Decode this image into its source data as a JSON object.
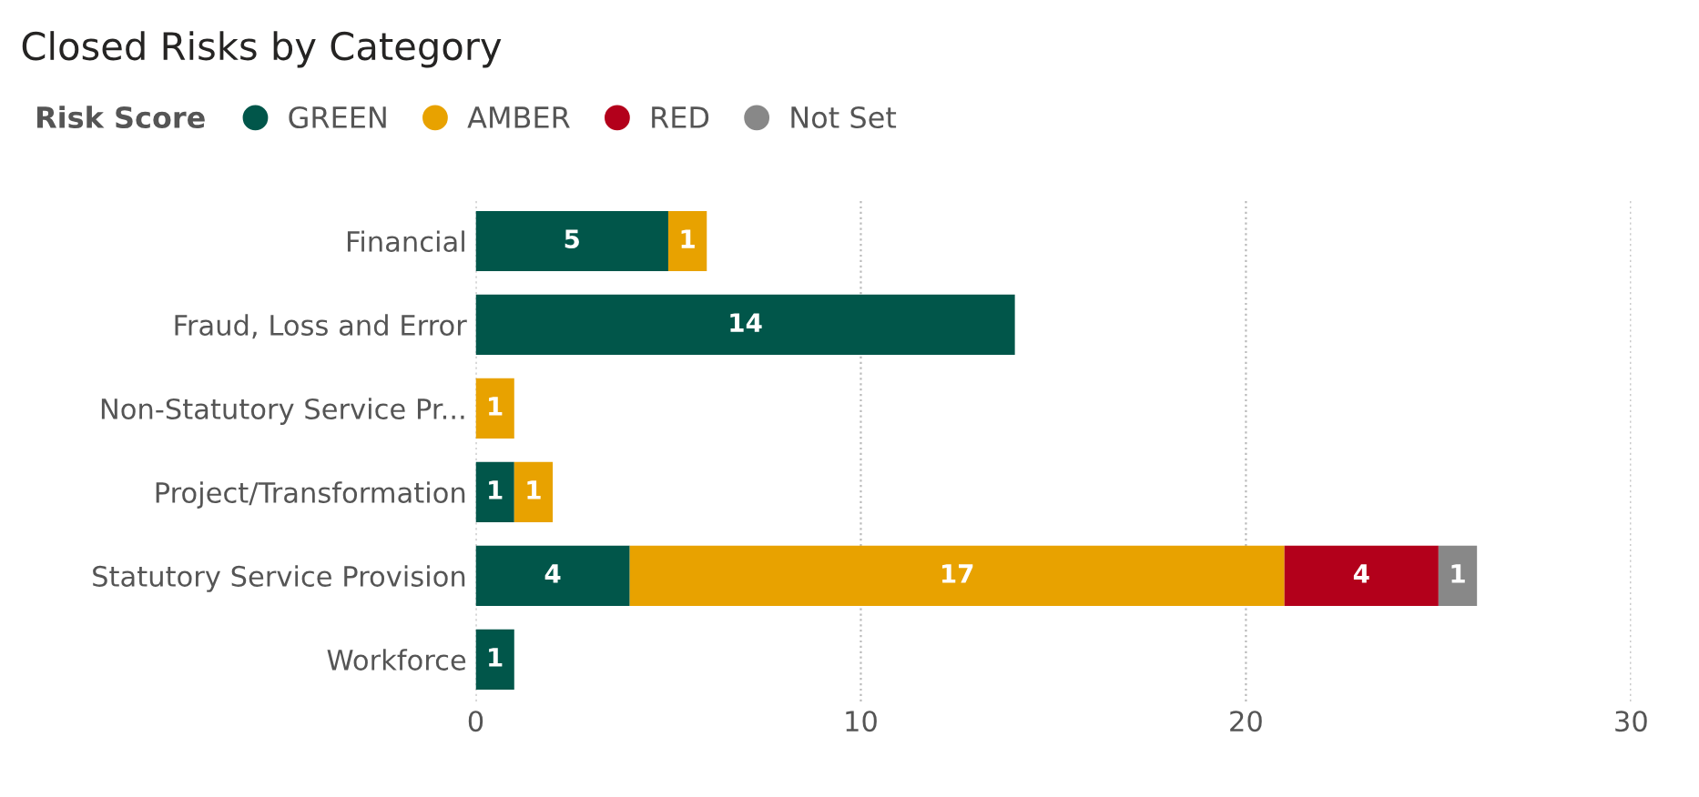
{
  "chart_data": {
    "type": "bar",
    "orientation": "horizontal",
    "stacked": true,
    "title": "Closed Risks by Category",
    "legend_title": "Risk Score",
    "legend": "top left",
    "categories": [
      "Financial",
      "Fraud, Loss and Error",
      "Non-Statutory Service Pr...",
      "Project/Transformation",
      "Statutory Service Provision",
      "Workforce"
    ],
    "series": [
      {
        "name": "GREEN",
        "color": "#01564a",
        "values": [
          5,
          14,
          null,
          1,
          4,
          1
        ]
      },
      {
        "name": "AMBER",
        "color": "#e8a200",
        "values": [
          1,
          null,
          1,
          1,
          17,
          null
        ]
      },
      {
        "name": "RED",
        "color": "#b3001b",
        "values": [
          null,
          null,
          null,
          null,
          4,
          null
        ]
      },
      {
        "name": "Not Set",
        "color": "#888888",
        "values": [
          null,
          null,
          null,
          null,
          1,
          null
        ]
      }
    ],
    "xlim": [
      0,
      30
    ],
    "xticks": [
      0,
      10,
      20,
      30
    ],
    "grid": "x",
    "data_labels": true
  }
}
